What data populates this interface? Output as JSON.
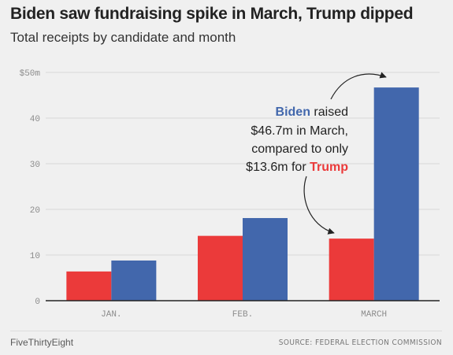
{
  "colors": {
    "trump": "#eb3a3a",
    "biden": "#4267ac",
    "grid": "#d9d9d9",
    "axis": "#222222",
    "tick_text": "#8c8c8c"
  },
  "chart_data": {
    "type": "bar",
    "title": "Biden saw fundraising spike in March, Trump dipped",
    "subtitle": "Total receipts by candidate and month",
    "categories": [
      "JAN.",
      "FEB.",
      "MARCH"
    ],
    "series": [
      {
        "name": "Trump",
        "values": [
          6.4,
          14.2,
          13.6
        ]
      },
      {
        "name": "Biden",
        "values": [
          8.8,
          18.1,
          46.7
        ]
      }
    ],
    "ylim": [
      0,
      50
    ],
    "yticks": [
      {
        "value": 0,
        "label": "0"
      },
      {
        "value": 10,
        "label": "10"
      },
      {
        "value": 20,
        "label": "20"
      },
      {
        "value": 30,
        "label": "30"
      },
      {
        "value": 40,
        "label": "40"
      },
      {
        "value": 50,
        "label": "$50m"
      }
    ],
    "grid": true,
    "legend": "none",
    "annotation": {
      "lines": [
        [
          {
            "text": "Biden",
            "series": "Biden"
          },
          {
            "text": " raised"
          }
        ],
        [
          {
            "text": "$46.7m in March,"
          }
        ],
        [
          {
            "text": "compared to only"
          }
        ],
        [
          {
            "text": "$13.6m for "
          },
          {
            "text": "Trump",
            "series": "Trump"
          }
        ]
      ]
    }
  },
  "footer": {
    "brand": "FiveThirtyEight",
    "source": "SOURCE: FEDERAL ELECTION COMMISSION"
  }
}
